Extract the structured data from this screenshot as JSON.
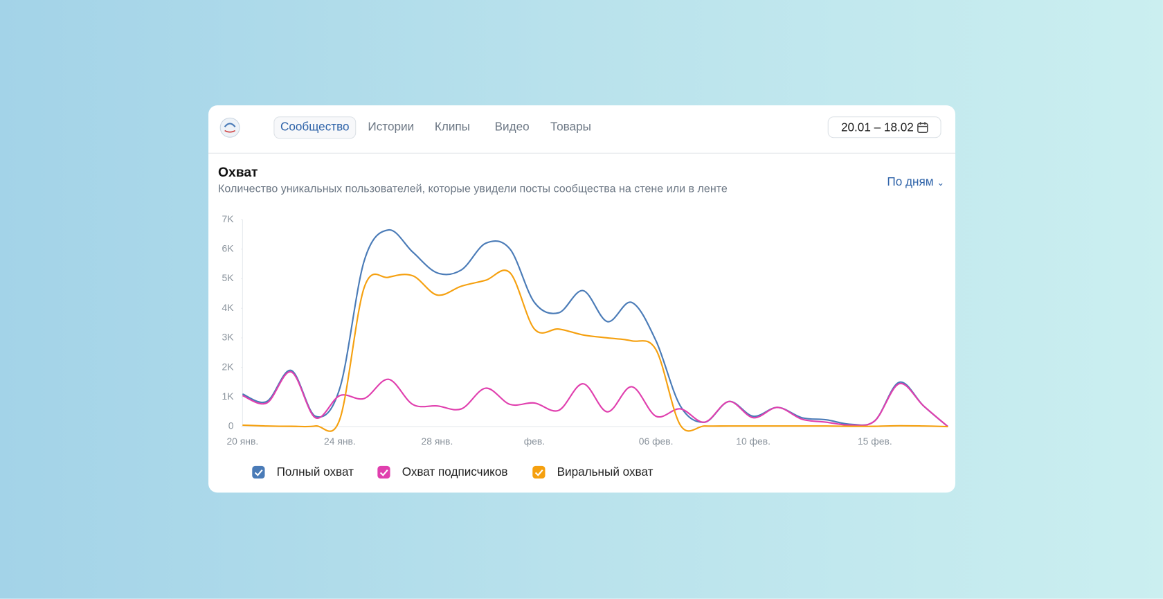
{
  "header": {
    "tabs": [
      "Сообщество",
      "Истории",
      "Клипы",
      "Видео",
      "Товары"
    ],
    "date_range": "20.01 – 18.02"
  },
  "section": {
    "period": "По дням"
  },
  "chart_data": {
    "type": "line",
    "title": "Охват",
    "subtitle": "Количество уникальных пользователей, которые увидели посты сообщества на стене или в ленте",
    "categories": [
      "20 янв.",
      null,
      null,
      null,
      "24 янв.",
      null,
      null,
      null,
      "28 янв.",
      null,
      null,
      null,
      "фев.",
      null,
      null,
      null,
      null,
      "06 фев.",
      null,
      null,
      null,
      "10 фев.",
      null,
      null,
      null,
      null,
      "15 фев.",
      null,
      null,
      null
    ],
    "series": [
      {
        "name": "Полный охват",
        "color": "#4a7bb7",
        "values": [
          1100,
          850,
          1900,
          350,
          1300,
          5600,
          6650,
          5900,
          5200,
          5300,
          6200,
          6000,
          4200,
          3850,
          4600,
          3550,
          4200,
          2900,
          700,
          150,
          850,
          350,
          650,
          300,
          230,
          80,
          200,
          1500,
          700,
          0
        ]
      },
      {
        "name": "Охват подписчиков",
        "color": "#e03fae",
        "values": [
          1050,
          800,
          1850,
          300,
          1050,
          950,
          1600,
          750,
          700,
          600,
          1300,
          750,
          800,
          550,
          1450,
          500,
          1350,
          350,
          600,
          150,
          850,
          300,
          650,
          250,
          150,
          50,
          200,
          1450,
          700,
          0
        ]
      },
      {
        "name": "Виральный охват",
        "color": "#f5a00f",
        "values": [
          50,
          20,
          10,
          20,
          250,
          4700,
          5050,
          5100,
          4450,
          4750,
          4950,
          5200,
          3300,
          3300,
          3100,
          3000,
          2900,
          2600,
          50,
          20,
          20,
          20,
          20,
          20,
          20,
          10,
          10,
          30,
          20,
          0
        ]
      }
    ],
    "ylim": [
      0,
      7000
    ],
    "yticks": [
      0,
      {
        "value": 1000,
        "label": "1K"
      },
      {
        "value": 2000,
        "label": "2K"
      },
      {
        "value": 3000,
        "label": "3K"
      },
      {
        "value": 4000,
        "label": "4K"
      },
      {
        "value": 5000,
        "label": "5K"
      },
      {
        "value": 6000,
        "label": "6K"
      },
      {
        "value": 7000,
        "label": "7K"
      }
    ],
    "grid": false,
    "legend": "bottom-left"
  }
}
